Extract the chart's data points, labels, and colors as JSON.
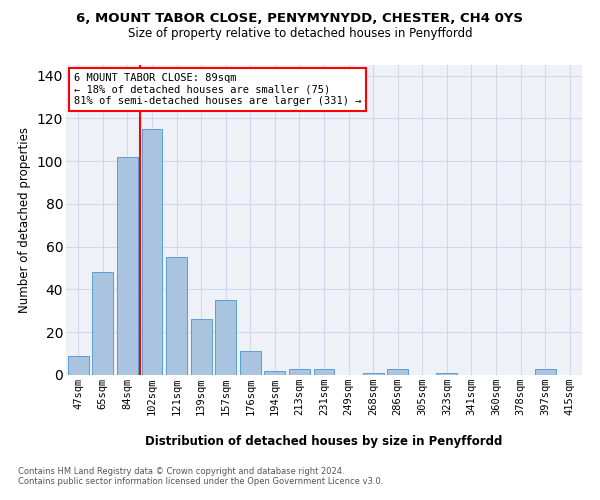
{
  "title": "6, MOUNT TABOR CLOSE, PENYMYNYDD, CHESTER, CH4 0YS",
  "subtitle": "Size of property relative to detached houses in Penyffordd",
  "xlabel": "Distribution of detached houses by size in Penyffordd",
  "ylabel": "Number of detached properties",
  "footer_line1": "Contains HM Land Registry data © Crown copyright and database right 2024.",
  "footer_line2": "Contains public sector information licensed under the Open Government Licence v3.0.",
  "categories": [
    "47sqm",
    "65sqm",
    "84sqm",
    "102sqm",
    "121sqm",
    "139sqm",
    "157sqm",
    "176sqm",
    "194sqm",
    "213sqm",
    "231sqm",
    "249sqm",
    "268sqm",
    "286sqm",
    "305sqm",
    "323sqm",
    "341sqm",
    "360sqm",
    "378sqm",
    "397sqm",
    "415sqm"
  ],
  "values": [
    9,
    48,
    102,
    115,
    55,
    26,
    35,
    11,
    2,
    3,
    3,
    0,
    1,
    3,
    0,
    1,
    0,
    0,
    0,
    3,
    0
  ],
  "bar_color": "#aac4e0",
  "bar_edge_color": "#5a9fd4",
  "grid_color": "#d0d8e8",
  "background_color": "#eef2f8",
  "vline_color": "red",
  "annotation_line1": "6 MOUNT TABOR CLOSE: 89sqm",
  "annotation_line2": "← 18% of detached houses are smaller (75)",
  "annotation_line3": "81% of semi-detached houses are larger (331) →",
  "ylim": [
    0,
    145
  ],
  "yticks": [
    0,
    20,
    40,
    60,
    80,
    100,
    120,
    140
  ]
}
